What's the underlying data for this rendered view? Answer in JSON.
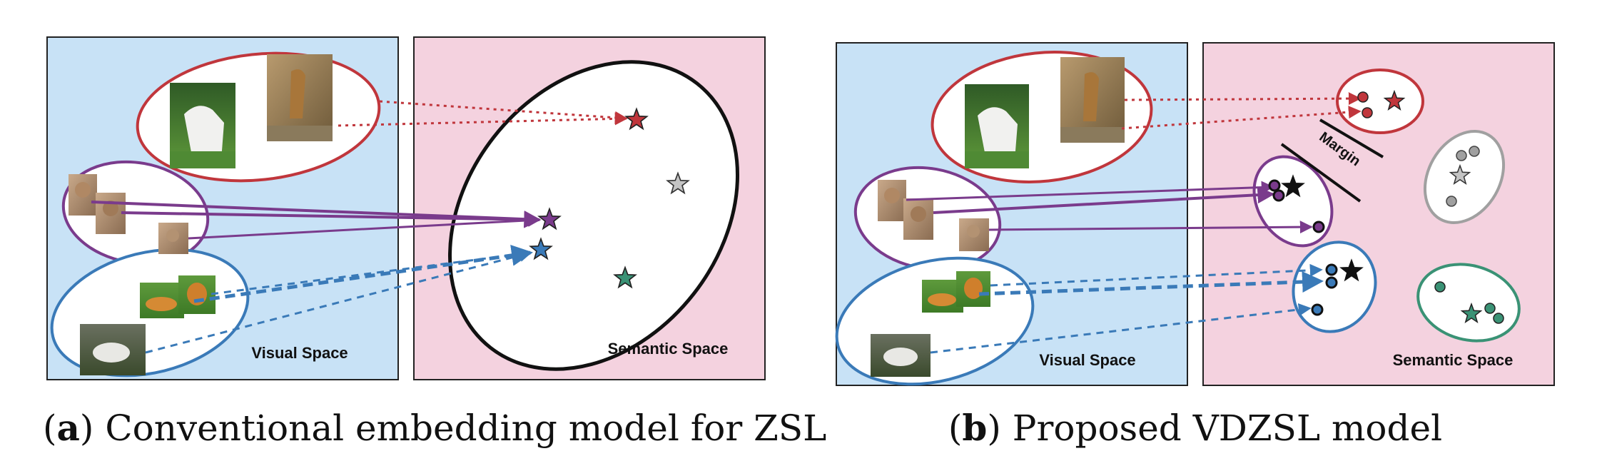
{
  "panel_a": {
    "visual_label": "Visual Space",
    "semantic_label": "Semantic Space",
    "caption_letter": "a",
    "caption_text": "Conventional embedding model for ZSL"
  },
  "panel_b": {
    "visual_label": "Visual Space",
    "semantic_label": "Semantic Space",
    "margin_label": "Margin",
    "caption_letter": "b",
    "caption_text": "Proposed VDZSL model"
  },
  "colors": {
    "visual_bg": "#c8e2f6",
    "semantic_bg": "#f4d2df",
    "horse": "#c0363c",
    "cat": "#7a3b8c",
    "tiger": "#3a7ab8",
    "gray": "#a0a0a0",
    "green": "#3a9275"
  }
}
